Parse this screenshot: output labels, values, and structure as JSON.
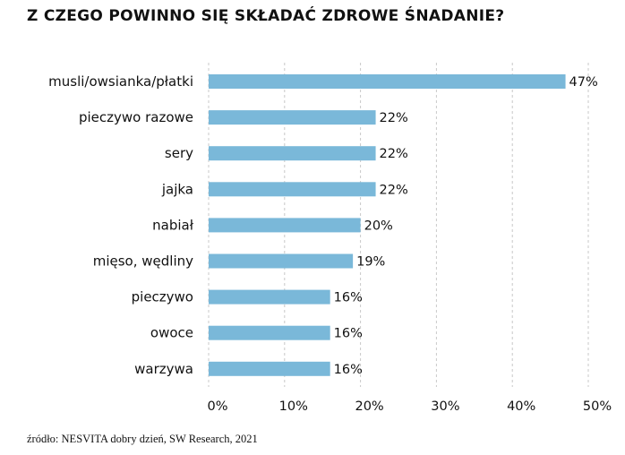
{
  "chart_data": {
    "type": "bar",
    "orientation": "horizontal",
    "title": "Z CZEGO POWINNO SIĘ SKŁADAĆ ZDROWE ŚNADANIE?",
    "categories": [
      "musli/owsianka/płatki",
      "pieczywo razowe",
      "sery",
      "jajka",
      "nabiał",
      "mięso, wędliny",
      "pieczywo",
      "owoce",
      "warzywa"
    ],
    "values": [
      47,
      22,
      22,
      22,
      20,
      19,
      16,
      16,
      16
    ],
    "value_labels": [
      "47%",
      "22%",
      "22%",
      "22%",
      "20%",
      "19%",
      "16%",
      "16%",
      "16%"
    ],
    "xlim": [
      0,
      50
    ],
    "x_ticks": [
      0,
      10,
      20,
      30,
      40,
      50
    ],
    "x_tick_labels": [
      "0%",
      "10%",
      "20%",
      "30%",
      "40%",
      "50%"
    ],
    "xlabel": "",
    "ylabel": "",
    "grid": "vertical-dashed",
    "bar_color": "#7ab8d9",
    "grid_color": "#c8c8c8"
  },
  "source": "źródło: NESVITA dobry dzień, SW Research, 2021"
}
